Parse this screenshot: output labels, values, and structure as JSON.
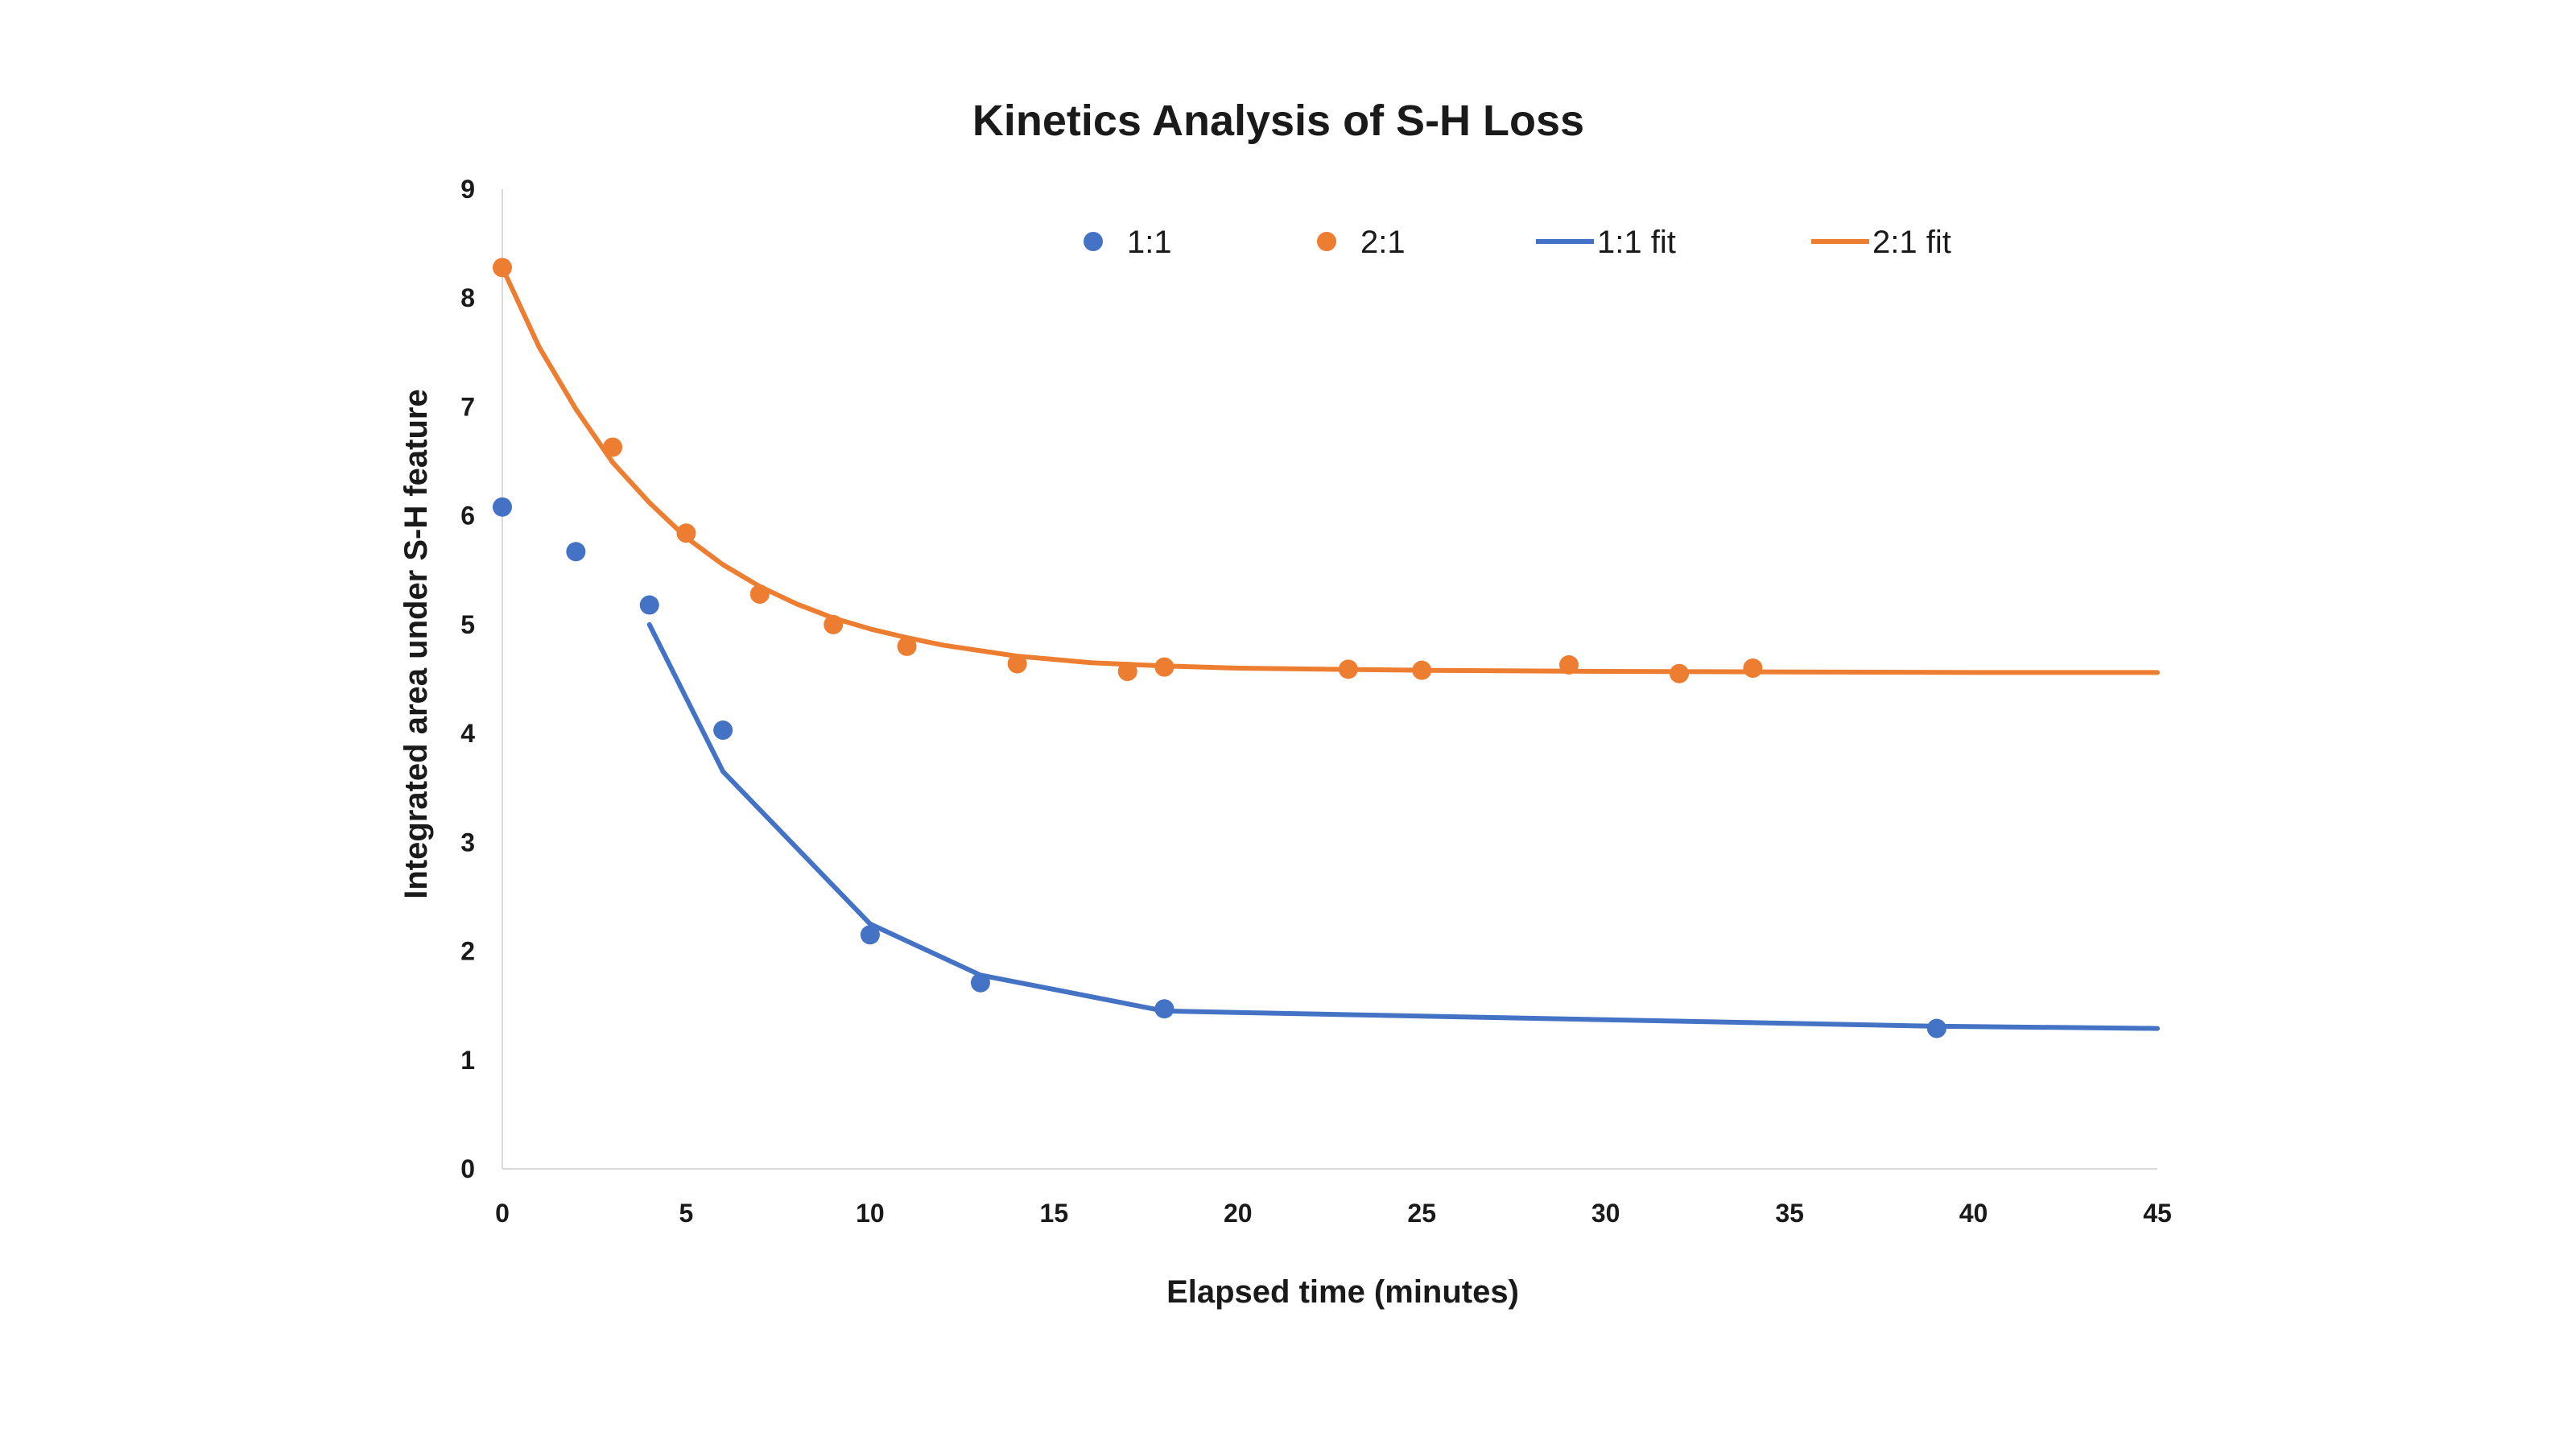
{
  "chart_data": {
    "type": "scatter",
    "title": "Kinetics Analysis of S-H Loss",
    "xlabel": "Elapsed time (minutes)",
    "ylabel": "Integrated area under S-H feature",
    "xlim": [
      0,
      45
    ],
    "ylim": [
      0,
      9
    ],
    "xticks": [
      "0",
      "5",
      "10",
      "15",
      "20",
      "25",
      "30",
      "35",
      "40",
      "45"
    ],
    "yticks": [
      "0",
      "1",
      "2",
      "3",
      "4",
      "5",
      "6",
      "7",
      "8",
      "9"
    ],
    "grid": false,
    "legend_position": "top",
    "series": [
      {
        "name": "1:1",
        "kind": "markers",
        "color": "#4472C4",
        "x": [
          0,
          2,
          4,
          6,
          10,
          13,
          18,
          39
        ],
        "y": [
          6.08,
          5.67,
          5.18,
          4.03,
          2.15,
          1.71,
          1.47,
          1.29
        ]
      },
      {
        "name": "2:1",
        "kind": "markers",
        "color": "#ED7D31",
        "x": [
          0,
          3,
          5,
          7,
          9,
          11,
          14,
          17,
          18,
          23,
          25,
          29,
          32,
          34
        ],
        "y": [
          8.28,
          6.63,
          5.84,
          5.28,
          5.0,
          4.8,
          4.64,
          4.57,
          4.61,
          4.59,
          4.58,
          4.63,
          4.55,
          4.6
        ]
      },
      {
        "name": "1:1 fit",
        "kind": "line",
        "color": "#4472C4",
        "x": [
          4,
          6,
          10,
          13,
          18,
          39,
          45
        ],
        "y": [
          5.0,
          3.65,
          2.25,
          1.78,
          1.45,
          1.31,
          1.29
        ]
      },
      {
        "name": "2:1 fit",
        "kind": "line",
        "color": "#ED7D31",
        "x": [
          0,
          1,
          2,
          3,
          4,
          5,
          6,
          7,
          8,
          9,
          10,
          11,
          12,
          14,
          16,
          18,
          20,
          25,
          30,
          35,
          40,
          45
        ],
        "y": [
          8.28,
          7.55,
          6.98,
          6.49,
          6.12,
          5.8,
          5.55,
          5.35,
          5.19,
          5.06,
          4.96,
          4.88,
          4.81,
          4.71,
          4.65,
          4.62,
          4.6,
          4.58,
          4.57,
          4.565,
          4.56,
          4.56
        ]
      }
    ]
  }
}
